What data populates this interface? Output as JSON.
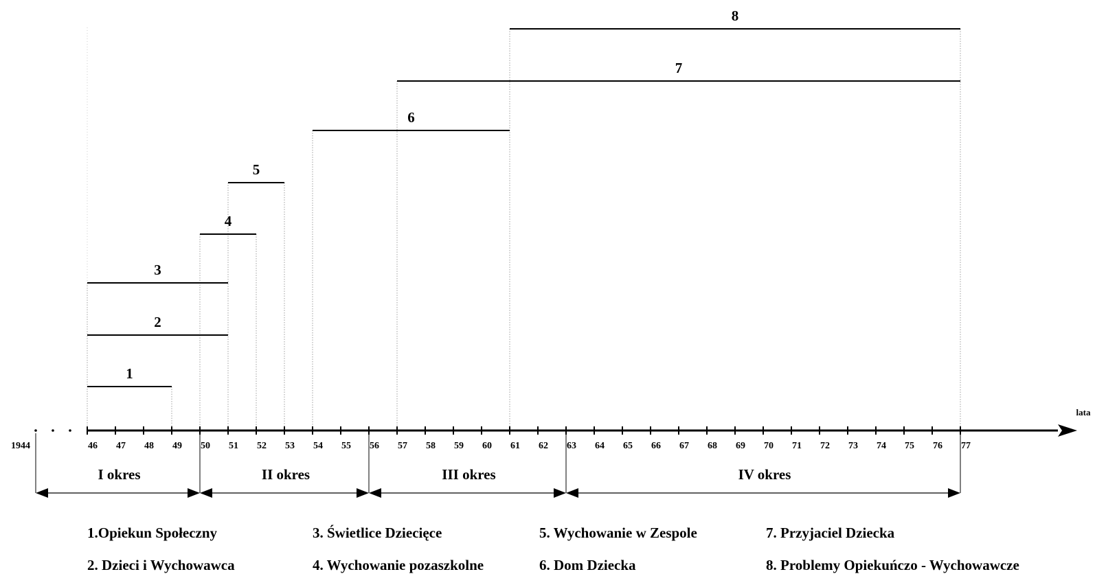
{
  "chart_data": {
    "type": "timeline",
    "axis_label": "lata",
    "start_label": "1944",
    "ticks": [
      "46",
      "47",
      "48",
      "49",
      "50",
      "51",
      "52",
      "53",
      "54",
      "55",
      "56",
      "57",
      "58",
      "59",
      "60",
      "61",
      "62",
      "63",
      "64",
      "65",
      "66",
      "67",
      "68",
      "69",
      "70",
      "71",
      "72",
      "73",
      "74",
      "75",
      "76",
      "77"
    ],
    "bars": [
      {
        "label": "1",
        "start": 1946,
        "end": 1949
      },
      {
        "label": "2",
        "start": 1946,
        "end": 1951
      },
      {
        "label": "3",
        "start": 1946,
        "end": 1951
      },
      {
        "label": "4",
        "start": 1950,
        "end": 1952
      },
      {
        "label": "5",
        "start": 1951,
        "end": 1953
      },
      {
        "label": "6",
        "start": 1954,
        "end": 1961
      },
      {
        "label": "7",
        "start": 1957,
        "end": 1977
      },
      {
        "label": "8",
        "start": 1961,
        "end": 1977
      }
    ],
    "periods": [
      {
        "label": "I okres",
        "start": 1944,
        "end": 1950
      },
      {
        "label": "II okres",
        "start": 1950,
        "end": 1956
      },
      {
        "label": "III okres",
        "start": 1956,
        "end": 1963
      },
      {
        "label": "IV okres",
        "start": 1963,
        "end": 1977
      }
    ]
  },
  "legend": [
    "1.Opiekun Społeczny",
    "2. Dzieci i Wychowawca",
    "3. Świetlice Dziecięce",
    "4. Wychowanie pozaszkolne",
    "5. Wychowanie w Zespole",
    "6. Dom Dziecka",
    "7. Przyjaciel Dziecka",
    "8. Problemy Opiekuńczo - Wychowawcze"
  ]
}
